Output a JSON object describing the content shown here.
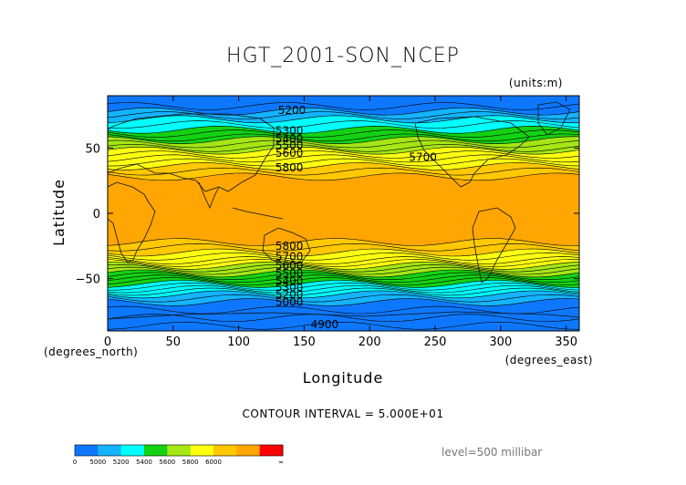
{
  "chart_data": {
    "type": "heatmap",
    "title": "HGT_2001-SON_NCEP",
    "units_note": "(units:m)",
    "xlabel": "Longitude",
    "ylabel": "Latitude",
    "x_unit_label": "(degrees_east)",
    "y_unit_label": "(degrees_north)",
    "xlim": [
      0,
      360
    ],
    "ylim": [
      -90,
      90
    ],
    "x_ticks": [
      0,
      50,
      100,
      150,
      200,
      250,
      300,
      350
    ],
    "y_ticks": [
      50,
      0,
      -50
    ],
    "contour_interval_text": "CONTOUR INTERVAL = 5.000E+01",
    "level_text": "level=500 millibar",
    "contour_labels": [
      {
        "text": "5200",
        "lon": 130,
        "lat": 79
      },
      {
        "text": "5300",
        "lon": 128,
        "lat": 63
      },
      {
        "text": "5400",
        "lon": 128,
        "lat": 57
      },
      {
        "text": "5500",
        "lon": 128,
        "lat": 52
      },
      {
        "text": "5600",
        "lon": 128,
        "lat": 46
      },
      {
        "text": "5700",
        "lon": 230,
        "lat": 43
      },
      {
        "text": "5800",
        "lon": 128,
        "lat": 35
      },
      {
        "text": "5800",
        "lon": 128,
        "lat": -25
      },
      {
        "text": "5700",
        "lon": 128,
        "lat": -33
      },
      {
        "text": "5600",
        "lon": 128,
        "lat": -40
      },
      {
        "text": "5500",
        "lon": 128,
        "lat": -46
      },
      {
        "text": "5400",
        "lon": 128,
        "lat": -52
      },
      {
        "text": "5300",
        "lon": 128,
        "lat": -57
      },
      {
        "text": "5200",
        "lon": 128,
        "lat": -62
      },
      {
        "text": "5000",
        "lon": 128,
        "lat": -68
      },
      {
        "text": "4900",
        "lon": 155,
        "lat": -85
      }
    ],
    "bands": [
      {
        "lat_top": 90,
        "lat_bottom": 78,
        "color": "#0d78ff"
      },
      {
        "lat_top": 78,
        "lat_bottom": 72,
        "color": "#14b4ff"
      },
      {
        "lat_top": 72,
        "lat_bottom": 64,
        "color": "#00ffff"
      },
      {
        "lat_top": 64,
        "lat_bottom": 56,
        "color": "#13d213"
      },
      {
        "lat_top": 56,
        "lat_bottom": 48,
        "color": "#a5e614"
      },
      {
        "lat_top": 48,
        "lat_bottom": 36,
        "color": "#ffff10"
      },
      {
        "lat_top": 36,
        "lat_bottom": 28,
        "color": "#ffc800"
      },
      {
        "lat_top": 28,
        "lat_bottom": -22,
        "color": "#ffa602"
      },
      {
        "lat_top": -22,
        "lat_bottom": -30,
        "color": "#ffc800"
      },
      {
        "lat_top": -30,
        "lat_bottom": -40,
        "color": "#ffff10"
      },
      {
        "lat_top": -40,
        "lat_bottom": -46,
        "color": "#a5e614"
      },
      {
        "lat_top": -46,
        "lat_bottom": -54,
        "color": "#13d213"
      },
      {
        "lat_top": -54,
        "lat_bottom": -62,
        "color": "#00ffff"
      },
      {
        "lat_top": -62,
        "lat_bottom": -68,
        "color": "#14b4ff"
      },
      {
        "lat_top": -68,
        "lat_bottom": -90,
        "color": "#0d78ff"
      }
    ],
    "contour_lats": [
      82,
      78,
      75,
      72,
      68,
      64,
      61,
      58,
      56,
      53,
      50,
      48,
      45,
      42,
      39,
      36,
      32,
      28,
      -22,
      -26,
      -30,
      -33,
      -36,
      -38,
      -40,
      -42,
      -44,
      -46,
      -48,
      -50,
      -52,
      -54,
      -56,
      -58,
      -60,
      -62,
      -65,
      -68,
      -74,
      -80,
      -86
    ],
    "colorbar": {
      "colors": [
        "#0d78ff",
        "#14b4ff",
        "#00ffff",
        "#13d213",
        "#a5e614",
        "#ffff10",
        "#ffc800",
        "#ffa602",
        "#ff0000"
      ],
      "labels": [
        "0",
        "5000",
        "5200",
        "5400",
        "5600",
        "5800",
        "6000",
        "∞"
      ]
    }
  }
}
